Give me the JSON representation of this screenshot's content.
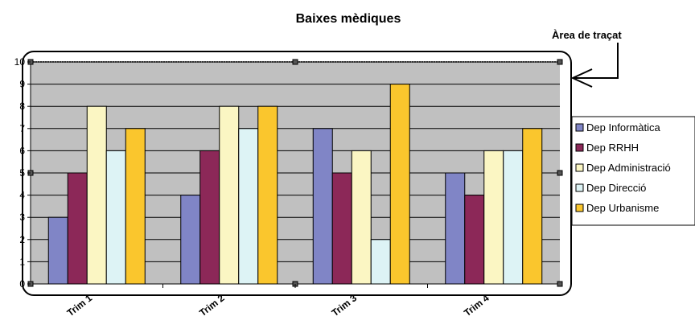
{
  "chart_data": {
    "type": "bar",
    "title": "Baixes mèdiques",
    "annotation": "Àrea de traçat",
    "categories": [
      "Trim 1",
      "Trim 2",
      "Trim 3",
      "Trim 4"
    ],
    "ylim": [
      0,
      10
    ],
    "yticks": [
      "0",
      "1",
      "2",
      "3",
      "4",
      "5",
      "6",
      "7",
      "8",
      "9",
      "10"
    ],
    "grid": true,
    "legend_position": "right",
    "series": [
      {
        "name": "Dep Informàtica",
        "color": "#8085C6",
        "values": [
          3,
          4,
          7,
          5
        ]
      },
      {
        "name": "Dep RRHH",
        "color": "#8C2858",
        "values": [
          5,
          6,
          5,
          4
        ]
      },
      {
        "name": "Dep Administració",
        "color": "#FBF6C3",
        "values": [
          8,
          8,
          6,
          6
        ]
      },
      {
        "name": "Dep Direcció",
        "color": "#DDF3F5",
        "values": [
          6,
          7,
          2,
          6
        ]
      },
      {
        "name": "Dep Urbanisme",
        "color": "#FAC62D",
        "values": [
          7,
          8,
          9,
          7
        ]
      }
    ],
    "plot_background": "#C0C0C0"
  }
}
